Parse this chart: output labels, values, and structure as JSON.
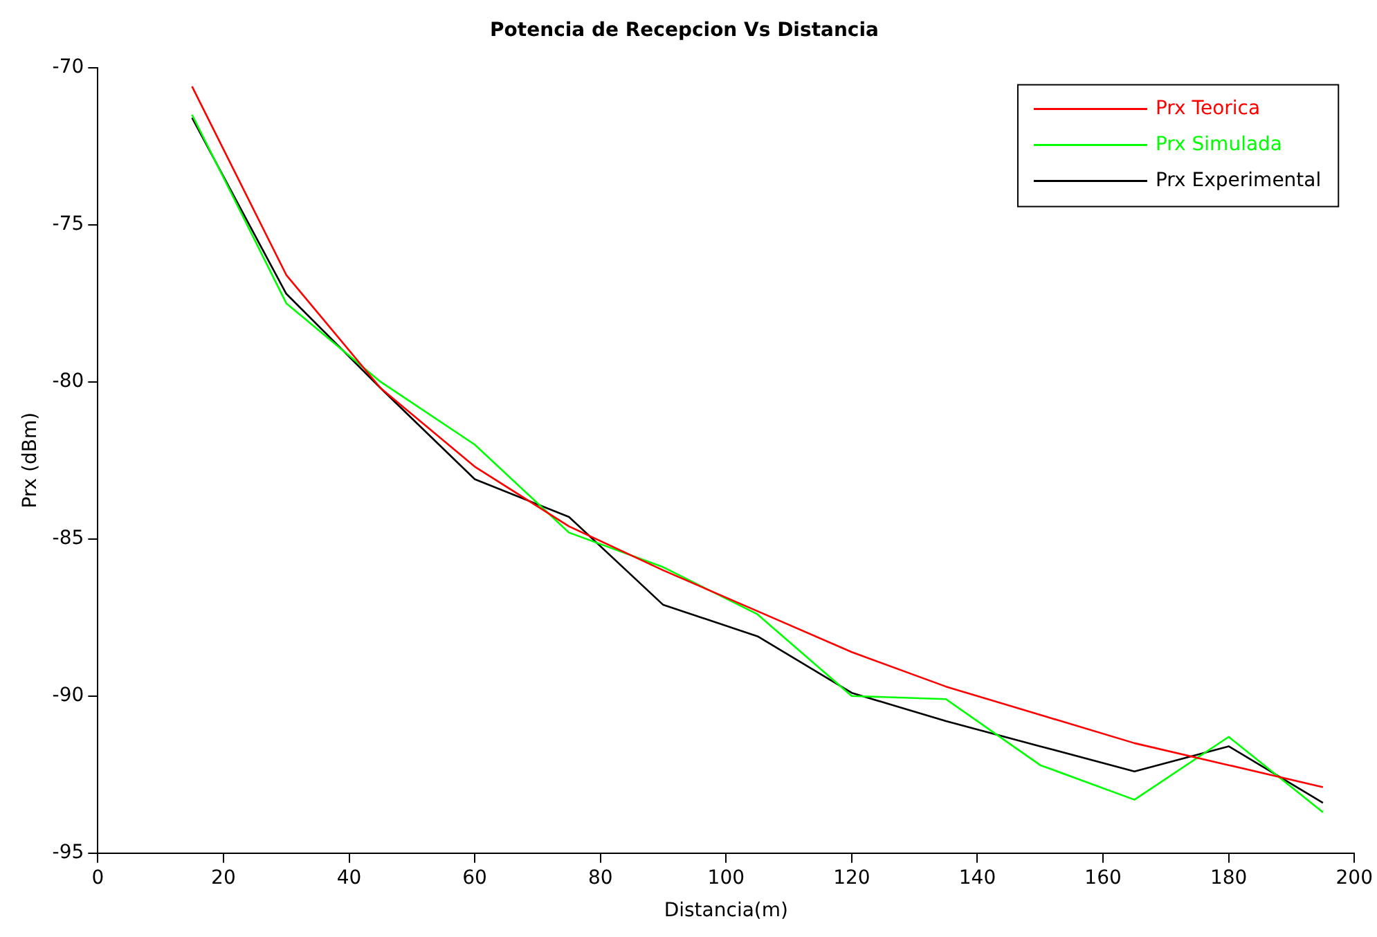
{
  "chart_data": {
    "type": "line",
    "title": "Potencia de Recepcion Vs Distancia",
    "xlabel": "Distancia(m)",
    "ylabel": "Prx (dBm)",
    "x": [
      15,
      30,
      45,
      60,
      75,
      90,
      105,
      120,
      135,
      150,
      165,
      180,
      195
    ],
    "series": [
      {
        "name": "Prx Teorica",
        "color": "#ff0000",
        "values": [
          -70.6,
          -76.6,
          -80.2,
          -82.7,
          -84.6,
          -86.0,
          -87.3,
          -88.6,
          -89.7,
          -90.6,
          -91.5,
          -92.2,
          -92.9
        ]
      },
      {
        "name": "Prx Simulada",
        "color": "#00ff00",
        "values": [
          -71.5,
          -77.5,
          -80.0,
          -82.0,
          -84.8,
          -85.9,
          -87.4,
          -90.0,
          -90.1,
          -92.2,
          -93.3,
          -91.3,
          -93.7
        ]
      },
      {
        "name": "Prx Experimental",
        "color": "#000000",
        "values": [
          -71.6,
          -77.2,
          -80.2,
          -83.1,
          -84.3,
          -87.1,
          -88.1,
          -89.9,
          -90.8,
          -91.6,
          -92.4,
          -91.6,
          -93.4
        ]
      }
    ],
    "xlim": [
      0,
      200
    ],
    "xticks": [
      0,
      20,
      40,
      60,
      80,
      100,
      120,
      140,
      160,
      180,
      200
    ],
    "ylim": [
      -95,
      -70
    ],
    "yticks": [
      -95,
      -90,
      -85,
      -80,
      -75,
      -70
    ],
    "legend": "top right",
    "marker": "none",
    "line_style": "solid",
    "grid": false
  }
}
